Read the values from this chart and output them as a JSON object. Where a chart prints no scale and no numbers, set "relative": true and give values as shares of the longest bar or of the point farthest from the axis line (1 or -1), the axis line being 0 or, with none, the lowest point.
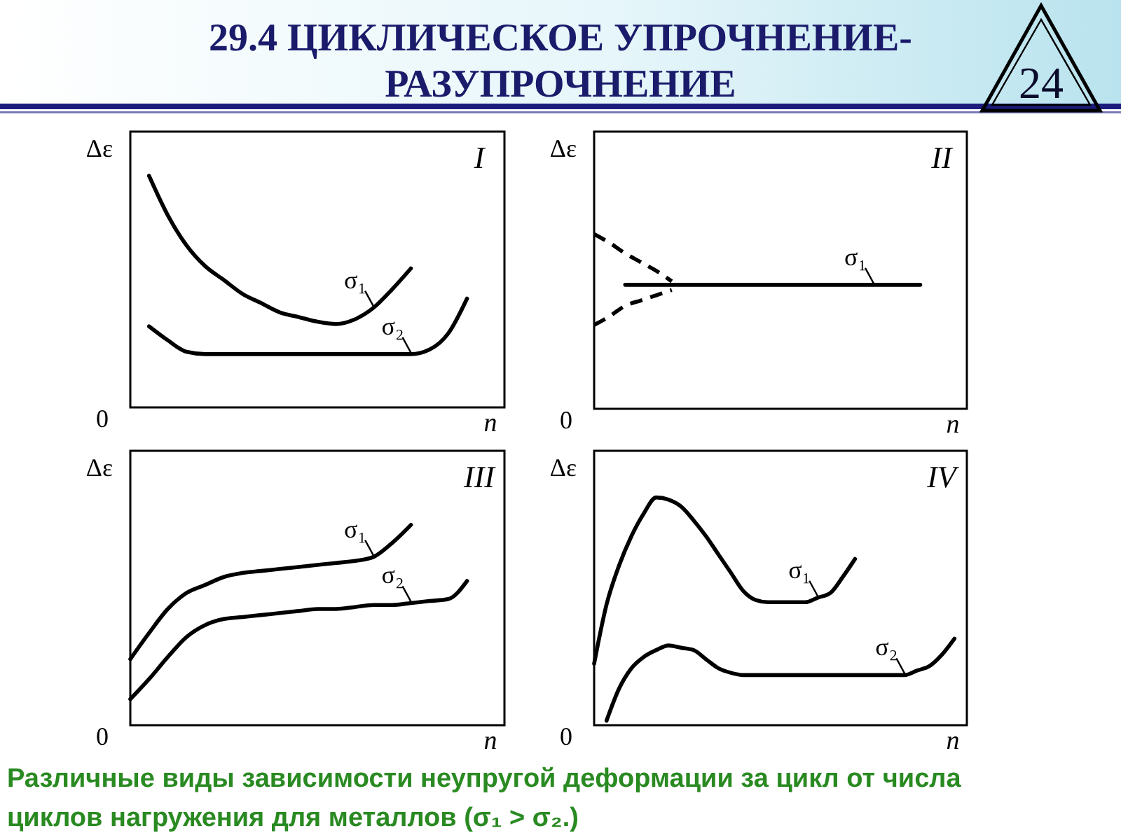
{
  "chart_data": [
    {
      "type": "other",
      "title": "29.4 ЦИКЛИЧЕСКОЕ УПРОЧНЕНИЕ-РАЗУПРОЧНЕНИЕ",
      "annotations": [
        "24"
      ]
    },
    {
      "type": "line",
      "title": "I",
      "relative": true,
      "xlabel": "n",
      "ylabel": "Δε",
      "categories": [
        null,
        null,
        null,
        null,
        null,
        null,
        null,
        null,
        null,
        null,
        null,
        null,
        null,
        null,
        null,
        null,
        null,
        null,
        null,
        null,
        null
      ],
      "series": [
        {
          "name": "σ₁",
          "color": "#000000",
          "values": [
            null,
            1.0,
            0.83,
            0.7,
            0.61,
            0.55,
            0.49,
            0.45,
            0.41,
            0.39,
            0.37,
            0.36,
            0.38,
            0.43,
            0.51,
            0.6,
            null,
            null,
            null,
            null,
            null
          ]
        },
        {
          "name": "σ₂",
          "color": "#000000",
          "values": [
            null,
            0.35,
            0.29,
            0.24,
            0.23,
            0.23,
            0.23,
            0.23,
            0.23,
            0.23,
            0.23,
            0.23,
            0.23,
            0.23,
            0.23,
            0.23,
            0.25,
            0.32,
            0.47,
            null,
            null
          ]
        }
      ],
      "annotations": [
        "0"
      ]
    },
    {
      "type": "line",
      "title": "II",
      "relative": true,
      "xlabel": "n",
      "ylabel": "Δε",
      "categories": [
        null,
        null,
        null,
        null,
        null,
        null,
        null,
        null,
        null,
        null,
        null,
        null,
        null,
        null,
        null,
        null,
        null,
        null,
        null,
        null,
        null,
        null,
        null,
        null,
        null
      ],
      "series": [
        {
          "name": "σ₁",
          "color": "#000000",
          "values": [
            null,
            null,
            0.71,
            0.71,
            0.71,
            0.71,
            0.71,
            0.71,
            0.71,
            0.71,
            0.71,
            0.71,
            0.71,
            0.71,
            0.71,
            0.71,
            0.71,
            0.71,
            0.71,
            0.71,
            0.71,
            0.71,
            null,
            null,
            null
          ]
        },
        {
          "color": "#000000",
          "line_style": "dashed",
          "values": [
            1.0,
            0.95,
            0.89,
            0.84,
            0.79,
            0.73,
            null,
            null,
            null,
            null,
            null,
            null,
            null,
            null,
            null,
            null,
            null,
            null,
            null,
            null,
            null,
            null,
            null,
            null,
            null
          ]
        },
        {
          "color": "#000000",
          "line_style": "dashed",
          "values": [
            0.48,
            0.53,
            0.59,
            0.62,
            0.65,
            0.68,
            null,
            null,
            null,
            null,
            null,
            null,
            null,
            null,
            null,
            null,
            null,
            null,
            null,
            null,
            null,
            null,
            null,
            null,
            null
          ]
        }
      ],
      "annotations": [
        "0"
      ]
    },
    {
      "type": "line",
      "title": "III",
      "relative": true,
      "xlabel": "n",
      "ylabel": "Δε",
      "categories": [
        null,
        null,
        null,
        null,
        null,
        null,
        null,
        null,
        null,
        null,
        null,
        null,
        null,
        null,
        null,
        null,
        null,
        null,
        null,
        null,
        null
      ],
      "series": [
        {
          "name": "σ₁",
          "color": "#000000",
          "values": [
            0.33,
            0.46,
            0.58,
            0.66,
            0.7,
            0.74,
            0.76,
            0.77,
            0.78,
            0.79,
            0.8,
            0.81,
            0.82,
            0.84,
            0.91,
            1.0,
            null,
            null,
            null,
            null,
            null
          ]
        },
        {
          "name": "σ₂",
          "color": "#000000",
          "values": [
            0.13,
            0.23,
            0.34,
            0.44,
            0.5,
            0.53,
            0.54,
            0.55,
            0.56,
            0.57,
            0.58,
            0.58,
            0.59,
            0.6,
            0.6,
            0.61,
            0.62,
            0.63,
            0.72,
            null,
            null
          ]
        }
      ],
      "annotations": [
        "0"
      ]
    },
    {
      "type": "line",
      "title": "IV",
      "relative": true,
      "xlabel": "n",
      "ylabel": "Δε",
      "categories": [
        null,
        null,
        null,
        null,
        null,
        null,
        null,
        null,
        null,
        null,
        null,
        null,
        null,
        null,
        null,
        null,
        null,
        null,
        null,
        null,
        null,
        null,
        null,
        null,
        null,
        null,
        null,
        null,
        null,
        null,
        null
      ],
      "series": [
        {
          "name": "σ₁",
          "color": "#000000",
          "values": [
            0.27,
            0.53,
            0.7,
            0.83,
            0.93,
            1.0,
            0.99,
            0.96,
            0.9,
            0.83,
            0.75,
            0.67,
            0.59,
            0.55,
            0.54,
            0.54,
            0.54,
            0.54,
            0.56,
            0.58,
            0.65,
            0.73,
            null,
            null,
            null,
            null,
            null,
            null,
            null,
            null,
            null
          ]
        },
        {
          "name": "σ₂",
          "color": "#000000",
          "values": [
            null,
            0.02,
            0.16,
            0.25,
            0.3,
            0.33,
            0.35,
            0.34,
            0.33,
            0.29,
            0.25,
            0.23,
            0.22,
            0.22,
            0.22,
            0.22,
            0.22,
            0.22,
            0.22,
            0.22,
            0.22,
            0.22,
            0.22,
            0.22,
            0.22,
            0.22,
            0.24,
            0.26,
            0.31,
            0.38,
            null
          ]
        }
      ],
      "annotations": [
        "0"
      ]
    },
    {
      "type": "other",
      "annotations": [
        "Различные виды зависимости неупругой деформации за цикл от числа циклов нагружения для металлов (σ₁ > σ₂.)"
      ]
    }
  ]
}
